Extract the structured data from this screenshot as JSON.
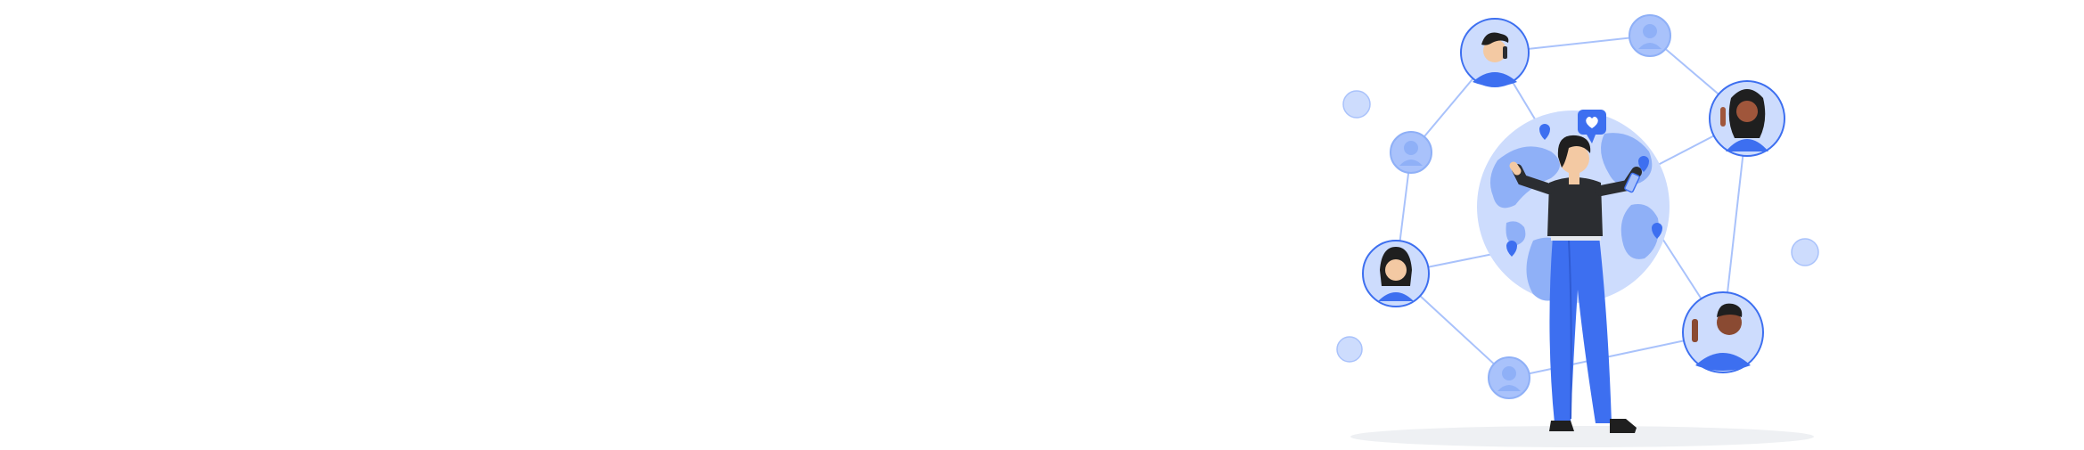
{
  "scene": {
    "description_free": true,
    "palette": {
      "background": "#ffffff",
      "accent": "#3d6ff0",
      "accent_light": "#a9c2fb",
      "accent_pale": "#cddcfd",
      "line": "#a9c2fb",
      "skin_light": "#f3c9a3",
      "skin_dark": "#8a4a32",
      "hair": "#1f1f1f",
      "shirt": "#2b2d31",
      "pants": "#3d6ff0",
      "shadow": "#eef0f3"
    },
    "icons": [
      "globe-icon",
      "heart-chat-bubble-icon",
      "smartphone-icon",
      "location-pin-icon",
      "user-avatar-icon"
    ]
  }
}
